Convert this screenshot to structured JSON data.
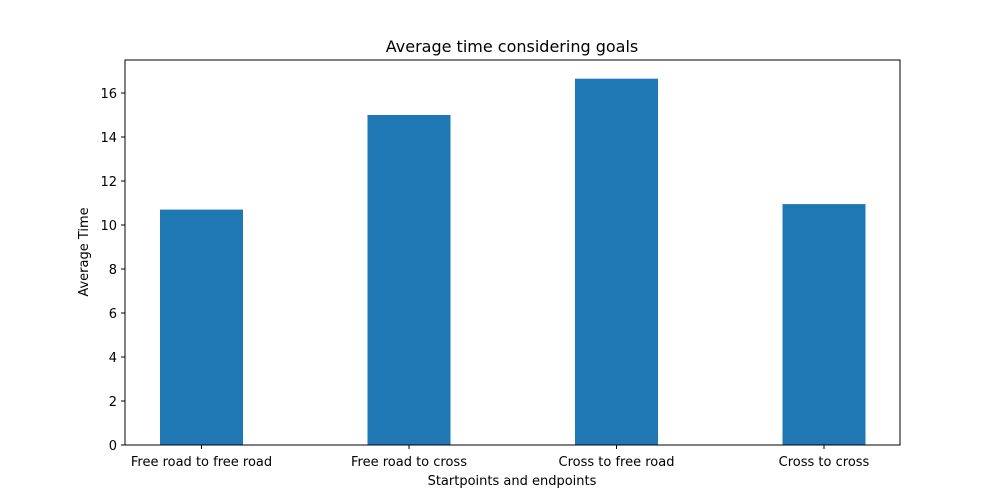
{
  "chart_data": {
    "type": "bar",
    "title": "Average time considering goals",
    "xlabel": "Startpoints and endpoints",
    "ylabel": "Average Time",
    "categories": [
      "Free road to free road",
      "Free road to cross",
      "Cross to free road",
      "Cross to cross"
    ],
    "values": [
      10.7,
      15.0,
      16.65,
      10.95
    ],
    "ylim": [
      0,
      17.5
    ],
    "yticks": [
      0,
      2,
      4,
      6,
      8,
      10,
      12,
      14,
      16
    ],
    "bar_color": "#1f77b4",
    "grid": false,
    "legend": "none"
  }
}
